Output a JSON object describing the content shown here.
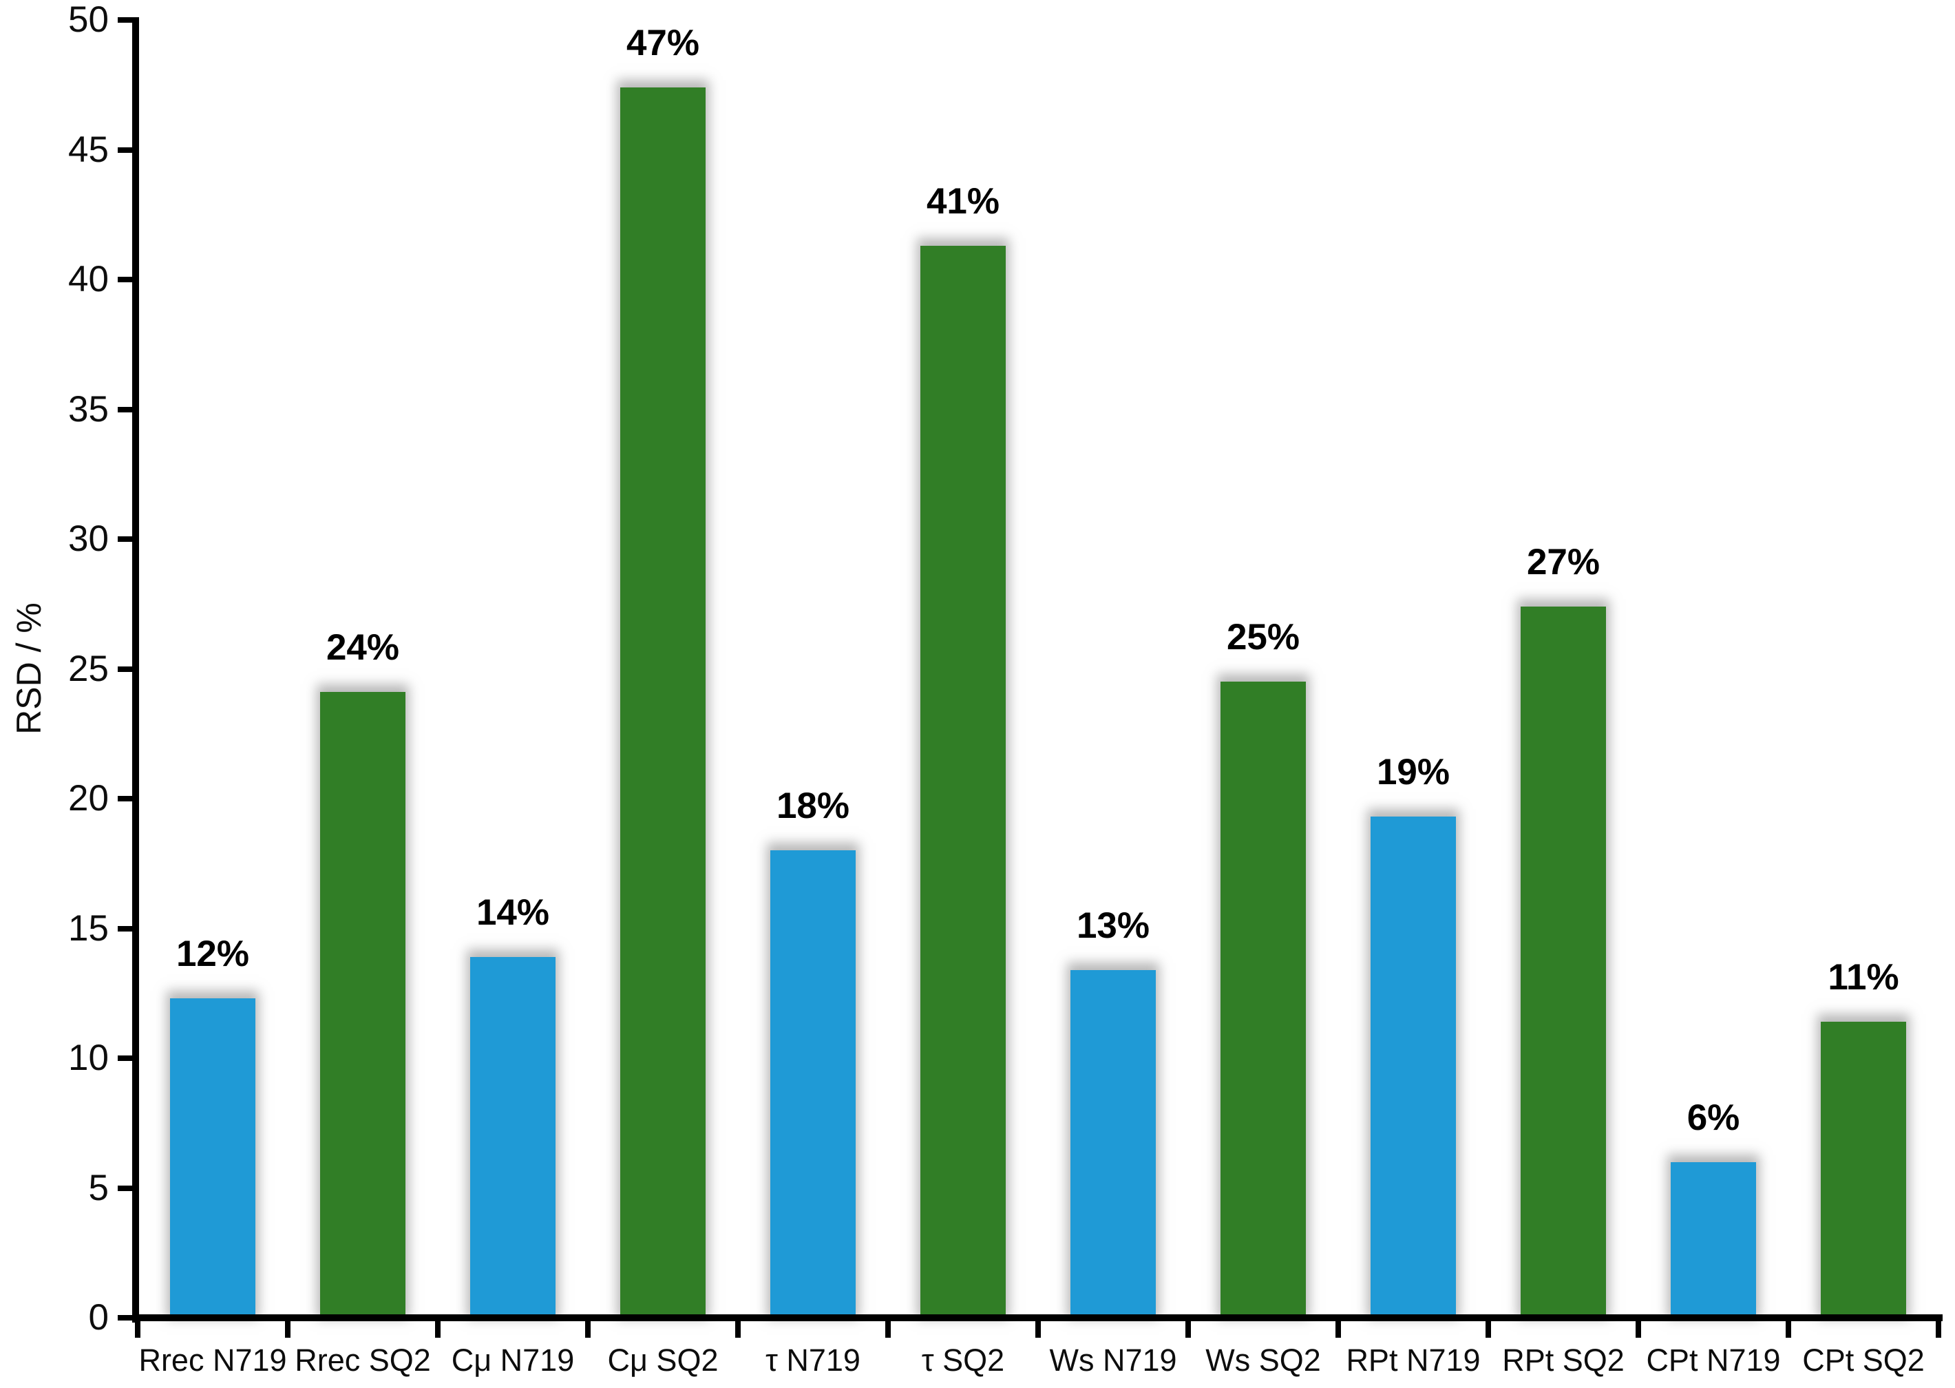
{
  "chart_data": {
    "type": "bar",
    "title": "",
    "xlabel": "",
    "ylabel": "RSD / %",
    "ylim": [
      0,
      50
    ],
    "yticks": [
      0,
      5,
      10,
      15,
      20,
      25,
      30,
      35,
      40,
      45,
      50
    ],
    "grid": false,
    "legend_position": "none",
    "categories": [
      "Rrec N719",
      "Rrec SQ2",
      "Cμ N719",
      "Cμ SQ2",
      "τ N719",
      "τ SQ2",
      "Ws N719",
      "Ws SQ2",
      "RPt N719",
      "RPt SQ2",
      "CPt N719",
      "CPt SQ2"
    ],
    "values": [
      12.3,
      24.1,
      13.9,
      47.4,
      18.0,
      41.3,
      13.4,
      24.5,
      19.3,
      27.4,
      6.0,
      11.4
    ],
    "bar_labels": [
      "12%",
      "24%",
      "14%",
      "47%",
      "18%",
      "41%",
      "13%",
      "25%",
      "19%",
      "27%",
      "6%",
      "11%"
    ],
    "color_key": {
      "N719": "#1F9AD6",
      "SQ2": "#317E26"
    },
    "axis_color": "#000000",
    "label_color": "#000000"
  }
}
